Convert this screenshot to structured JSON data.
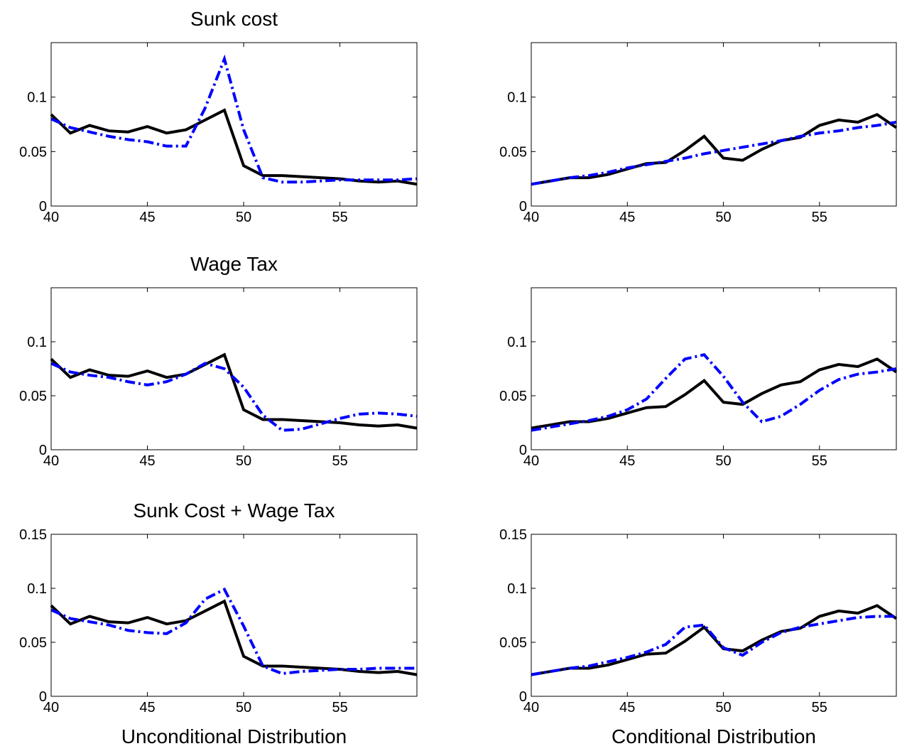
{
  "chart_data": [
    {
      "type": "line",
      "title": "Sunk cost",
      "x": [
        40,
        41,
        42,
        43,
        44,
        45,
        46,
        47,
        48,
        49,
        50,
        51,
        52,
        53,
        54,
        55,
        56,
        57,
        58,
        59
      ],
      "xlim": [
        40,
        59
      ],
      "xticks": [
        40,
        45,
        50,
        55
      ],
      "ylim": [
        0,
        0.15
      ],
      "yticks": [
        0,
        0.05,
        0.1
      ],
      "series": [
        {
          "color": "#000000",
          "line_style": "solid",
          "values": [
            0.084,
            0.067,
            0.074,
            0.069,
            0.068,
            0.073,
            0.067,
            0.07,
            0.079,
            0.088,
            0.037,
            0.028,
            0.028,
            0.027,
            0.026,
            0.025,
            0.023,
            0.022,
            0.023,
            0.02
          ]
        },
        {
          "color": "#0000ff",
          "line_style": "dashdot",
          "values": [
            0.08,
            0.072,
            0.068,
            0.064,
            0.061,
            0.059,
            0.055,
            0.055,
            0.09,
            0.135,
            0.07,
            0.026,
            0.022,
            0.022,
            0.023,
            0.024,
            0.024,
            0.024,
            0.024,
            0.025
          ]
        }
      ]
    },
    {
      "type": "line",
      "x": [
        40,
        41,
        42,
        43,
        44,
        45,
        46,
        47,
        48,
        49,
        50,
        51,
        52,
        53,
        54,
        55,
        56,
        57,
        58,
        59
      ],
      "xlim": [
        40,
        59
      ],
      "xticks": [
        40,
        45,
        50,
        55
      ],
      "ylim": [
        0,
        0.15
      ],
      "yticks": [
        0,
        0.05,
        0.1
      ],
      "series": [
        {
          "color": "#000000",
          "line_style": "solid",
          "values": [
            0.02,
            0.023,
            0.026,
            0.026,
            0.029,
            0.034,
            0.039,
            0.04,
            0.051,
            0.064,
            0.044,
            0.042,
            0.052,
            0.06,
            0.063,
            0.074,
            0.079,
            0.077,
            0.084,
            0.072
          ]
        },
        {
          "color": "#0000ff",
          "line_style": "dashdot",
          "values": [
            0.02,
            0.023,
            0.026,
            0.028,
            0.031,
            0.035,
            0.038,
            0.041,
            0.044,
            0.048,
            0.051,
            0.054,
            0.057,
            0.06,
            0.064,
            0.067,
            0.069,
            0.072,
            0.074,
            0.077
          ]
        }
      ]
    },
    {
      "type": "line",
      "title": "Wage Tax",
      "x": [
        40,
        41,
        42,
        43,
        44,
        45,
        46,
        47,
        48,
        49,
        50,
        51,
        52,
        53,
        54,
        55,
        56,
        57,
        58,
        59
      ],
      "xlim": [
        40,
        59
      ],
      "xticks": [
        40,
        45,
        50,
        55
      ],
      "ylim": [
        0,
        0.15
      ],
      "yticks": [
        0,
        0.05,
        0.1
      ],
      "series": [
        {
          "color": "#000000",
          "line_style": "solid",
          "values": [
            0.084,
            0.067,
            0.074,
            0.069,
            0.068,
            0.073,
            0.067,
            0.07,
            0.079,
            0.088,
            0.037,
            0.028,
            0.028,
            0.027,
            0.026,
            0.025,
            0.023,
            0.022,
            0.023,
            0.02
          ]
        },
        {
          "color": "#0000ff",
          "line_style": "dashdot",
          "values": [
            0.08,
            0.072,
            0.069,
            0.067,
            0.063,
            0.06,
            0.063,
            0.07,
            0.08,
            0.075,
            0.058,
            0.032,
            0.018,
            0.019,
            0.024,
            0.029,
            0.033,
            0.034,
            0.033,
            0.031
          ]
        }
      ]
    },
    {
      "type": "line",
      "x": [
        40,
        41,
        42,
        43,
        44,
        45,
        46,
        47,
        48,
        49,
        50,
        51,
        52,
        53,
        54,
        55,
        56,
        57,
        58,
        59
      ],
      "xlim": [
        40,
        59
      ],
      "xticks": [
        40,
        45,
        50,
        55
      ],
      "ylim": [
        0,
        0.15
      ],
      "yticks": [
        0,
        0.05,
        0.1
      ],
      "series": [
        {
          "color": "#000000",
          "line_style": "solid",
          "values": [
            0.02,
            0.023,
            0.026,
            0.026,
            0.029,
            0.034,
            0.039,
            0.04,
            0.051,
            0.064,
            0.044,
            0.042,
            0.052,
            0.06,
            0.063,
            0.074,
            0.079,
            0.077,
            0.084,
            0.072
          ]
        },
        {
          "color": "#0000ff",
          "line_style": "dashdot",
          "values": [
            0.018,
            0.021,
            0.024,
            0.027,
            0.031,
            0.037,
            0.047,
            0.066,
            0.084,
            0.088,
            0.068,
            0.044,
            0.026,
            0.031,
            0.042,
            0.055,
            0.065,
            0.07,
            0.072,
            0.075
          ]
        }
      ]
    },
    {
      "type": "line",
      "title": "Sunk Cost + Wage Tax",
      "xlabel": "Unconditional Distribution",
      "x": [
        40,
        41,
        42,
        43,
        44,
        45,
        46,
        47,
        48,
        49,
        50,
        51,
        52,
        53,
        54,
        55,
        56,
        57,
        58,
        59
      ],
      "xlim": [
        40,
        59
      ],
      "xticks": [
        40,
        45,
        50,
        55
      ],
      "ylim": [
        0,
        0.15
      ],
      "yticks": [
        0,
        0.05,
        0.1,
        0.15
      ],
      "series": [
        {
          "color": "#000000",
          "line_style": "solid",
          "values": [
            0.084,
            0.067,
            0.074,
            0.069,
            0.068,
            0.073,
            0.067,
            0.07,
            0.079,
            0.088,
            0.037,
            0.028,
            0.028,
            0.027,
            0.026,
            0.025,
            0.023,
            0.022,
            0.023,
            0.02
          ]
        },
        {
          "color": "#0000ff",
          "line_style": "dashdot",
          "values": [
            0.08,
            0.072,
            0.069,
            0.066,
            0.061,
            0.059,
            0.058,
            0.068,
            0.09,
            0.099,
            0.065,
            0.028,
            0.021,
            0.023,
            0.024,
            0.025,
            0.025,
            0.026,
            0.026,
            0.026
          ]
        }
      ]
    },
    {
      "type": "line",
      "xlabel": "Conditional Distribution",
      "x": [
        40,
        41,
        42,
        43,
        44,
        45,
        46,
        47,
        48,
        49,
        50,
        51,
        52,
        53,
        54,
        55,
        56,
        57,
        58,
        59
      ],
      "xlim": [
        40,
        59
      ],
      "xticks": [
        40,
        45,
        50,
        55
      ],
      "ylim": [
        0,
        0.15
      ],
      "yticks": [
        0,
        0.05,
        0.1,
        0.15
      ],
      "series": [
        {
          "color": "#000000",
          "line_style": "solid",
          "values": [
            0.02,
            0.023,
            0.026,
            0.026,
            0.029,
            0.034,
            0.039,
            0.04,
            0.051,
            0.064,
            0.044,
            0.042,
            0.052,
            0.06,
            0.063,
            0.074,
            0.079,
            0.077,
            0.084,
            0.072
          ]
        },
        {
          "color": "#0000ff",
          "line_style": "dashdot",
          "values": [
            0.02,
            0.023,
            0.026,
            0.028,
            0.032,
            0.036,
            0.041,
            0.048,
            0.064,
            0.066,
            0.045,
            0.038,
            0.05,
            0.059,
            0.064,
            0.067,
            0.07,
            0.073,
            0.074,
            0.074
          ]
        }
      ]
    }
  ]
}
